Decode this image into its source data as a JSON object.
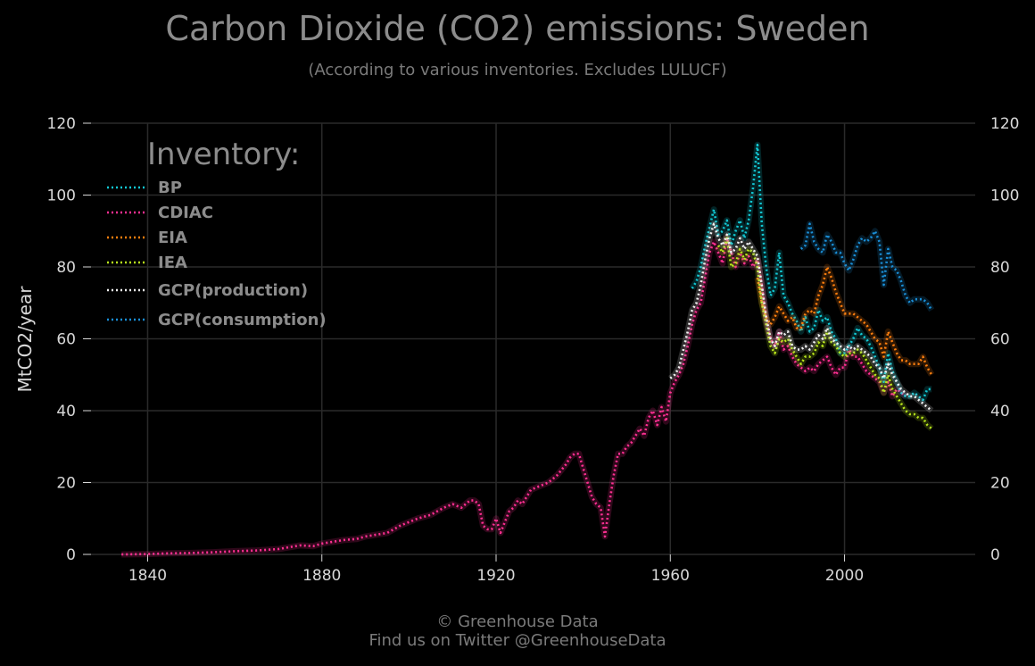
{
  "chart_data": {
    "type": "line",
    "title": "Carbon Dioxide (CO2) emissions: Sweden",
    "subtitle": "(According to various inventories. Excludes LULUCF)",
    "xlabel": "",
    "ylabel": "MtCO2/year",
    "xlim": [
      1827,
      2030
    ],
    "ylim": [
      0,
      120
    ],
    "xticks": [
      1840,
      1880,
      1920,
      1960,
      2000
    ],
    "yticks": [
      0,
      20,
      40,
      60,
      80,
      100,
      120
    ],
    "grid": true,
    "legend_title": "Inventory:",
    "legend_position": "top-left",
    "series": [
      {
        "name": "BP",
        "color": "#12c8d4",
        "x": [
          1965,
          1966,
          1967,
          1968,
          1969,
          1970,
          1971,
          1972,
          1973,
          1974,
          1975,
          1976,
          1977,
          1978,
          1979,
          1980,
          1981,
          1982,
          1983,
          1984,
          1985,
          1986,
          1987,
          1988,
          1989,
          1990,
          1991,
          1992,
          1993,
          1994,
          1995,
          1996,
          1997,
          1998,
          1999,
          2000,
          2001,
          2002,
          2003,
          2004,
          2005,
          2006,
          2007,
          2008,
          2009,
          2010,
          2011,
          2012,
          2013,
          2014,
          2015,
          2016,
          2017,
          2018,
          2019,
          2020
        ],
        "y": [
          74,
          76,
          80,
          86,
          91,
          96,
          89,
          90,
          93,
          86,
          90,
          93,
          88,
          93,
          102,
          114,
          92,
          80,
          72,
          74,
          84,
          72,
          70,
          67,
          65,
          62,
          66,
          62,
          63,
          68,
          65,
          66,
          62,
          60,
          56,
          56,
          58,
          60,
          63,
          61,
          60,
          58,
          55,
          52,
          48,
          56,
          51,
          48,
          45,
          44,
          44,
          45,
          44,
          43,
          46,
          46
        ]
      },
      {
        "name": "CDIAC",
        "color": "#ff2f92",
        "x": [
          1834,
          1840,
          1845,
          1850,
          1855,
          1860,
          1865,
          1870,
          1875,
          1878,
          1880,
          1885,
          1888,
          1890,
          1895,
          1898,
          1900,
          1902,
          1905,
          1908,
          1910,
          1912,
          1914,
          1915,
          1916,
          1917,
          1918,
          1919,
          1920,
          1921,
          1922,
          1923,
          1924,
          1925,
          1926,
          1928,
          1930,
          1932,
          1934,
          1936,
          1937,
          1938,
          1939,
          1940,
          1941,
          1942,
          1943,
          1944,
          1945,
          1946,
          1947,
          1948,
          1949,
          1950,
          1951,
          1952,
          1953,
          1954,
          1955,
          1956,
          1957,
          1958,
          1959,
          1960,
          1961,
          1962,
          1963,
          1964,
          1965,
          1966,
          1967,
          1968,
          1969,
          1970,
          1971,
          1972,
          1973,
          1974,
          1975,
          1976,
          1977,
          1978,
          1979,
          1980,
          1981,
          1982,
          1983,
          1984,
          1985,
          1986,
          1987,
          1988,
          1989,
          1990,
          1991,
          1992,
          1993,
          1994,
          1995,
          1996,
          1997,
          1998,
          1999,
          2000,
          2001,
          2002,
          2003,
          2004,
          2005,
          2006,
          2007,
          2008,
          2009,
          2010,
          2011,
          2012,
          2013,
          2014
        ],
        "y": [
          0,
          0.1,
          0.3,
          0.4,
          0.6,
          0.9,
          1.1,
          1.5,
          2.5,
          2.3,
          3,
          4,
          4.3,
          5,
          6,
          8,
          9,
          10,
          11,
          13,
          14,
          13,
          15,
          15,
          14,
          8,
          7,
          7,
          10,
          6,
          9,
          12,
          13,
          15,
          14,
          18,
          19,
          20,
          22,
          25,
          27,
          28,
          28,
          24,
          20,
          16,
          14,
          13,
          5,
          14,
          22,
          28,
          28,
          30,
          31,
          33,
          35,
          33,
          38,
          40,
          36,
          41,
          37,
          45,
          48,
          50,
          53,
          58,
          64,
          68,
          70,
          77,
          84,
          87,
          84,
          81,
          88,
          84,
          80,
          84,
          81,
          83,
          80,
          82,
          75,
          65,
          60,
          58,
          62,
          57,
          58,
          55,
          53,
          52,
          51,
          52,
          51,
          53,
          54,
          55,
          52,
          50,
          52,
          52,
          57,
          55,
          55,
          53,
          51,
          50,
          49,
          48,
          45,
          48,
          44,
          46,
          45,
          44
        ]
      },
      {
        "name": "EIA",
        "color": "#ff7f0e",
        "x": [
          1980,
          1981,
          1982,
          1983,
          1984,
          1985,
          1986,
          1987,
          1988,
          1989,
          1990,
          1991,
          1992,
          1993,
          1994,
          1995,
          1996,
          1997,
          1998,
          1999,
          2000,
          2001,
          2002,
          2003,
          2004,
          2005,
          2006,
          2007,
          2008,
          2009,
          2010,
          2011,
          2012,
          2013,
          2014,
          2015,
          2016,
          2017,
          2018,
          2019,
          2020
        ],
        "y": [
          77,
          70,
          66,
          64,
          66,
          69,
          67,
          65,
          66,
          63,
          63,
          67,
          68,
          67,
          72,
          75,
          80,
          77,
          73,
          70,
          67,
          67,
          67,
          66,
          65,
          64,
          62,
          60,
          59,
          55,
          62,
          59,
          56,
          54,
          54,
          53,
          53,
          53,
          55,
          52,
          50
        ]
      },
      {
        "name": "IEA",
        "color": "#b8e61c",
        "x": [
          1971,
          1972,
          1973,
          1974,
          1975,
          1976,
          1977,
          1978,
          1979,
          1980,
          1981,
          1982,
          1983,
          1984,
          1985,
          1986,
          1987,
          1988,
          1989,
          1990,
          1991,
          1992,
          1993,
          1994,
          1995,
          1996,
          1997,
          1998,
          1999,
          2000,
          2001,
          2002,
          2003,
          2004,
          2005,
          2006,
          2007,
          2008,
          2009,
          2010,
          2011,
          2012,
          2013,
          2014,
          2015,
          2016,
          2017,
          2018,
          2019,
          2020
        ],
        "y": [
          86,
          84,
          88,
          80,
          81,
          85,
          82,
          85,
          84,
          80,
          70,
          64,
          58,
          56,
          60,
          59,
          60,
          57,
          55,
          53,
          55,
          55,
          56,
          59,
          58,
          62,
          59,
          58,
          56,
          55,
          56,
          56,
          57,
          56,
          54,
          52,
          50,
          49,
          45,
          50,
          46,
          44,
          42,
          40,
          39,
          39,
          38,
          38,
          36,
          35
        ]
      },
      {
        "name": "GCP(production)",
        "color": "#f2f2f2",
        "x": [
          1960,
          1961,
          1962,
          1963,
          1964,
          1965,
          1966,
          1967,
          1968,
          1969,
          1970,
          1971,
          1972,
          1973,
          1974,
          1975,
          1976,
          1977,
          1978,
          1979,
          1980,
          1981,
          1982,
          1983,
          1984,
          1985,
          1986,
          1987,
          1988,
          1989,
          1990,
          1991,
          1992,
          1993,
          1994,
          1995,
          1996,
          1997,
          1998,
          1999,
          2000,
          2001,
          2002,
          2003,
          2004,
          2005,
          2006,
          2007,
          2008,
          2009,
          2010,
          2011,
          2012,
          2013,
          2014,
          2015,
          2016,
          2017,
          2018,
          2019,
          2020
        ],
        "y": [
          49,
          50,
          52,
          57,
          62,
          68,
          70,
          75,
          82,
          88,
          92,
          88,
          86,
          89,
          84,
          85,
          88,
          85,
          87,
          85,
          83,
          75,
          66,
          60,
          58,
          62,
          61,
          62,
          58,
          57,
          57,
          58,
          57,
          59,
          61,
          60,
          63,
          60,
          59,
          58,
          57,
          58,
          57,
          58,
          57,
          56,
          55,
          53,
          52,
          49,
          53,
          50,
          48,
          46,
          45,
          44,
          44,
          43,
          42,
          41,
          40
        ]
      },
      {
        "name": "GCP(consumption)",
        "color": "#1a8fd8",
        "x": [
          1990,
          1991,
          1992,
          1993,
          1994,
          1995,
          1996,
          1997,
          1998,
          1999,
          2000,
          2001,
          2002,
          2003,
          2004,
          2005,
          2006,
          2007,
          2008,
          2009,
          2010,
          2011,
          2012,
          2013,
          2014,
          2015,
          2016,
          2017,
          2018,
          2019,
          2020
        ],
        "y": [
          85,
          86,
          92,
          87,
          85,
          84,
          89,
          87,
          84,
          84,
          81,
          79,
          82,
          86,
          88,
          87,
          88,
          90,
          87,
          75,
          85,
          80,
          79,
          76,
          72,
          70,
          71,
          71,
          71,
          70,
          68
        ]
      }
    ]
  },
  "footer": {
    "line1": "© Greenhouse Data",
    "line2": "Find us on Twitter @GreenhouseData"
  }
}
